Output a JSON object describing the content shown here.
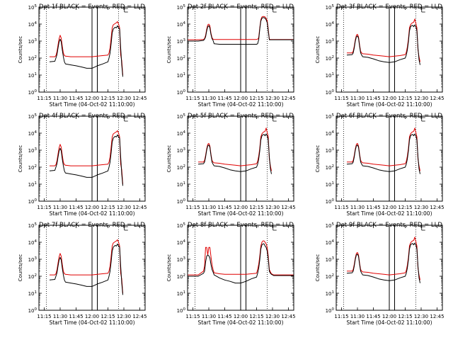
{
  "chart_data": {
    "type": "line",
    "panels": [
      {
        "title": "Det 1f BLACK = Events, RED = LLD"
      },
      {
        "title": "Det 2f BLACK = Events, RED = LLD"
      },
      {
        "title": "Det 3f BLACK = Events, RED = LLD"
      },
      {
        "title": "Det 4f BLACK = Events, RED = LLD"
      },
      {
        "title": "Det 5f BLACK = Events, RED = LLD"
      },
      {
        "title": "Det 6f BLACK = Events, RED = LLD"
      },
      {
        "title": "Det 7f BLACK = Events, RED = LLD"
      },
      {
        "title": "Det 8f BLACK = Events, RED = LLD"
      },
      {
        "title": "Det 9f BLACK = Events, RED = LLD"
      }
    ],
    "xlabel": "Start Time (04-Oct-02 11:10:00)",
    "ylabel": "Counts/sec",
    "x_tick_labels": [
      "11:15",
      "11:30",
      "11:45",
      "12:00",
      "12:15",
      "12:30",
      "12:45"
    ],
    "x_ticks_min": [
      5,
      20,
      35,
      50,
      65,
      80,
      95
    ],
    "xlim_min": [
      0,
      100
    ],
    "y_tick_exponents": [
      "0",
      "1",
      "2",
      "3",
      "4",
      "5"
    ],
    "y_tick_base": "10",
    "yscale": "log",
    "ylim": [
      1,
      100000
    ],
    "dotted_lines_min": [
      7,
      75
    ],
    "vertical_lines_min": [
      50,
      55
    ],
    "bracket_marker_min": 80.5,
    "series": [
      {
        "name": "Events",
        "color": "#000000"
      },
      {
        "name": "LLD",
        "color": "#e00000"
      }
    ],
    "x_min": [
      0,
      5,
      10,
      15,
      16,
      17,
      18,
      19,
      20,
      21,
      22,
      23,
      24,
      25,
      30,
      35,
      40,
      45,
      50,
      55,
      60,
      65,
      66,
      67,
      68,
      69,
      70,
      71,
      72,
      73,
      74,
      75,
      76,
      77,
      78,
      79,
      80,
      81,
      82,
      85,
      90,
      95,
      100
    ],
    "panel_series": [
      {
        "events": [
          null,
          null,
          60,
          65,
          100,
          160,
          400,
          900,
          1300,
          900,
          300,
          120,
          60,
          45,
          40,
          35,
          30,
          25,
          25,
          35,
          45,
          60,
          100,
          200,
          700,
          3000,
          5000,
          6000,
          6500,
          6000,
          8000,
          6000,
          5000,
          400,
          40,
          8,
          null,
          null,
          null,
          null,
          null,
          null,
          null
        ],
        "lld": [
          null,
          null,
          120,
          120,
          140,
          240,
          600,
          1400,
          2200,
          1500,
          500,
          200,
          140,
          130,
          120,
          120,
          120,
          120,
          120,
          130,
          140,
          150,
          200,
          400,
          1500,
          6000,
          9000,
          10000,
          11000,
          12000,
          14000,
          10000,
          6000,
          150,
          70,
          10,
          null,
          null,
          null,
          null,
          null,
          null,
          null
        ]
      },
      {
        "events": [
          1000,
          1000,
          1000,
          1100,
          1300,
          1800,
          4000,
          7000,
          8000,
          6000,
          2500,
          1400,
          1100,
          700,
          650,
          650,
          650,
          650,
          650,
          650,
          650,
          650,
          700,
          1200,
          5000,
          15000,
          22000,
          24000,
          24000,
          22000,
          18000,
          12000,
          4000,
          1200,
          1200,
          1200,
          1200,
          1200,
          1200,
          1200,
          1200,
          1200,
          1200
        ],
        "lld": [
          1200,
          1200,
          1200,
          1250,
          1400,
          2200,
          5000,
          9000,
          10000,
          8000,
          3000,
          1600,
          1300,
          1250,
          1250,
          1250,
          1250,
          1250,
          1250,
          1250,
          1250,
          1250,
          1300,
          1600,
          6000,
          18000,
          26000,
          28000,
          28000,
          26000,
          22000,
          16000,
          5000,
          1300,
          1250,
          1250,
          1250,
          1250,
          1250,
          1250,
          1250,
          1250,
          1250
        ]
      },
      {
        "events": [
          null,
          null,
          150,
          160,
          200,
          400,
          1000,
          1800,
          2000,
          1500,
          500,
          200,
          150,
          120,
          110,
          90,
          70,
          60,
          55,
          60,
          80,
          100,
          150,
          300,
          900,
          4000,
          7000,
          8000,
          8500,
          7000,
          9000,
          7000,
          4000,
          400,
          80,
          40,
          null,
          null,
          null,
          null,
          null,
          null,
          null
        ],
        "lld": [
          null,
          null,
          200,
          200,
          250,
          500,
          1200,
          2200,
          2500,
          1800,
          600,
          250,
          200,
          180,
          170,
          150,
          140,
          130,
          120,
          130,
          140,
          160,
          220,
          450,
          1300,
          6000,
          9000,
          11000,
          12000,
          13000,
          20000,
          11000,
          6000,
          300,
          120,
          60,
          null,
          null,
          null,
          null,
          null,
          null,
          null
        ]
      },
      {
        "events": [
          null,
          null,
          60,
          65,
          100,
          160,
          400,
          900,
          1300,
          900,
          300,
          120,
          60,
          45,
          40,
          35,
          30,
          25,
          25,
          35,
          45,
          60,
          100,
          200,
          700,
          3000,
          5000,
          6000,
          6500,
          6000,
          8000,
          6000,
          5000,
          400,
          40,
          8,
          null,
          null,
          null,
          null,
          null,
          null,
          null
        ],
        "lld": [
          null,
          null,
          120,
          120,
          140,
          240,
          600,
          1400,
          2200,
          1500,
          500,
          200,
          140,
          130,
          120,
          120,
          120,
          120,
          120,
          130,
          140,
          150,
          200,
          400,
          1500,
          6000,
          9000,
          10000,
          11000,
          12000,
          14000,
          10000,
          6000,
          150,
          70,
          10,
          null,
          null,
          null,
          null,
          null,
          null,
          null
        ]
      },
      {
        "events": [
          null,
          null,
          150,
          160,
          200,
          400,
          1000,
          1800,
          2000,
          1500,
          500,
          200,
          150,
          120,
          110,
          90,
          70,
          60,
          55,
          60,
          80,
          100,
          150,
          300,
          900,
          4000,
          7000,
          8000,
          8500,
          7000,
          9000,
          7000,
          4000,
          400,
          80,
          40,
          null,
          null,
          null,
          null,
          null,
          null,
          null
        ],
        "lld": [
          null,
          null,
          200,
          200,
          250,
          500,
          1200,
          2200,
          2500,
          1800,
          600,
          250,
          200,
          180,
          170,
          150,
          140,
          130,
          120,
          130,
          140,
          160,
          220,
          450,
          1300,
          6000,
          9000,
          11000,
          12000,
          13000,
          20000,
          11000,
          6000,
          300,
          120,
          60,
          null,
          null,
          null,
          null,
          null,
          null,
          null
        ]
      },
      {
        "events": [
          null,
          null,
          150,
          160,
          200,
          400,
          1000,
          1800,
          2000,
          1500,
          500,
          200,
          150,
          120,
          110,
          90,
          70,
          60,
          55,
          60,
          80,
          100,
          150,
          300,
          900,
          4000,
          7000,
          8000,
          8500,
          7000,
          9000,
          7000,
          4000,
          400,
          80,
          40,
          null,
          null,
          null,
          null,
          null,
          null,
          null
        ],
        "lld": [
          null,
          null,
          200,
          200,
          250,
          500,
          1200,
          2200,
          2500,
          1800,
          600,
          250,
          200,
          180,
          170,
          150,
          140,
          130,
          120,
          130,
          140,
          160,
          220,
          450,
          1300,
          6000,
          9000,
          11000,
          12000,
          13000,
          20000,
          11000,
          6000,
          300,
          120,
          60,
          null,
          null,
          null,
          null,
          null,
          null,
          null
        ]
      },
      {
        "events": [
          null,
          null,
          60,
          65,
          100,
          160,
          400,
          900,
          1300,
          900,
          300,
          120,
          60,
          45,
          40,
          35,
          30,
          25,
          25,
          35,
          45,
          60,
          100,
          200,
          700,
          3000,
          5000,
          6000,
          6500,
          6000,
          8000,
          6000,
          5000,
          400,
          40,
          8,
          null,
          null,
          null,
          null,
          null,
          null,
          null
        ],
        "lld": [
          null,
          null,
          120,
          120,
          140,
          240,
          600,
          1400,
          2200,
          1500,
          500,
          200,
          140,
          130,
          120,
          120,
          120,
          120,
          120,
          130,
          140,
          150,
          200,
          400,
          1500,
          6000,
          9000,
          10000,
          11000,
          12000,
          14000,
          10000,
          6000,
          150,
          70,
          10,
          null,
          null,
          null,
          null,
          null,
          null,
          null
        ]
      },
      {
        "events": [
          100,
          100,
          100,
          150,
          200,
          700,
          1500,
          1800,
          1600,
          1200,
          500,
          250,
          180,
          120,
          80,
          60,
          50,
          40,
          40,
          50,
          70,
          90,
          150,
          300,
          900,
          4000,
          7000,
          8000,
          8000,
          6000,
          5000,
          3000,
          1000,
          200,
          150,
          130,
          120,
          110,
          110,
          110,
          110,
          110,
          110
        ],
        "lld": [
          120,
          120,
          120,
          200,
          400,
          5000,
          5000,
          1800,
          5000,
          5000,
          1500,
          500,
          250,
          160,
          140,
          130,
          130,
          130,
          130,
          130,
          140,
          150,
          250,
          500,
          1500,
          6000,
          10000,
          12000,
          12000,
          10000,
          8000,
          5000,
          1500,
          250,
          180,
          140,
          130,
          120,
          120,
          120,
          120,
          120,
          120
        ]
      },
      {
        "events": [
          null,
          null,
          150,
          160,
          200,
          400,
          1000,
          1800,
          2000,
          1500,
          500,
          200,
          150,
          120,
          110,
          90,
          70,
          60,
          55,
          60,
          80,
          100,
          150,
          300,
          900,
          4000,
          7000,
          8000,
          8500,
          7000,
          9000,
          7000,
          4000,
          400,
          80,
          40,
          null,
          null,
          null,
          null,
          null,
          null,
          null
        ],
        "lld": [
          null,
          null,
          200,
          200,
          250,
          500,
          1200,
          2200,
          2500,
          1800,
          600,
          250,
          200,
          180,
          170,
          150,
          140,
          130,
          120,
          130,
          140,
          160,
          220,
          450,
          1300,
          6000,
          9000,
          11000,
          12000,
          13000,
          20000,
          11000,
          6000,
          300,
          120,
          60,
          null,
          null,
          null,
          null,
          null,
          null,
          null
        ]
      }
    ]
  }
}
